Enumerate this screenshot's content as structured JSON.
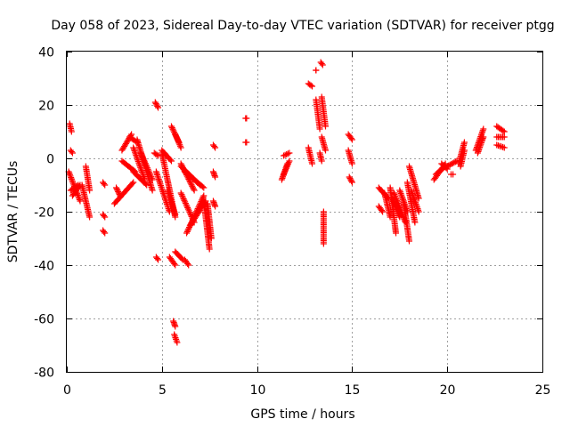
{
  "chart_data": {
    "type": "scatter",
    "title": "Day 058 of 2023, Sidereal Day-to-day VTEC variation (SDTVAR) for receiver ptgg",
    "xlabel": "GPS time / hours",
    "ylabel": "SDTVAR / TECUs",
    "xlim": [
      0,
      25
    ],
    "ylim": [
      -80,
      40
    ],
    "xticks": [
      0,
      5,
      10,
      15,
      20,
      25
    ],
    "yticks": [
      -80,
      -60,
      -40,
      -20,
      0,
      20,
      40
    ],
    "xtick_labels": [
      "0",
      "5",
      "10",
      "15",
      "20",
      "25"
    ],
    "ytick_labels": [
      "-80",
      "-60",
      "-40",
      "-20",
      "0",
      "20",
      "40"
    ],
    "grid": true,
    "marker": "+",
    "color": "#ff0000",
    "segments": [
      {
        "x0": 0.15,
        "x1": 0.25,
        "y0": 13,
        "y1": 10
      },
      {
        "x0": 0.2,
        "x1": 0.3,
        "y0": 3,
        "y1": 2
      },
      {
        "x0": 0.1,
        "x1": 0.7,
        "y0": -5,
        "y1": -16
      },
      {
        "x0": 0.2,
        "x1": 0.6,
        "y0": -12,
        "y1": -10
      },
      {
        "x0": 0.3,
        "x1": 0.7,
        "y0": -14,
        "y1": -10
      },
      {
        "x0": 0.8,
        "x1": 1.2,
        "y0": -10,
        "y1": -22
      },
      {
        "x0": 1.0,
        "x1": 1.2,
        "y0": -3,
        "y1": -12
      },
      {
        "x0": 1.9,
        "x1": 2.0,
        "y0": -9,
        "y1": -10
      },
      {
        "x0": 1.9,
        "x1": 2.0,
        "y0": -21,
        "y1": -22
      },
      {
        "x0": 1.9,
        "x1": 2.0,
        "y0": -27,
        "y1": -28
      },
      {
        "x0": 2.5,
        "x1": 3.5,
        "y0": -17,
        "y1": -9
      },
      {
        "x0": 2.6,
        "x1": 2.8,
        "y0": -11,
        "y1": -14
      },
      {
        "x0": 2.9,
        "x1": 3.4,
        "y0": 3,
        "y1": 9
      },
      {
        "x0": 3.3,
        "x1": 3.7,
        "y0": 8,
        "y1": 6
      },
      {
        "x0": 2.9,
        "x1": 3.6,
        "y0": -1,
        "y1": -5
      },
      {
        "x0": 3.5,
        "x1": 4.1,
        "y0": 4,
        "y1": -8
      },
      {
        "x0": 3.7,
        "x1": 4.5,
        "y0": 7,
        "y1": -12
      },
      {
        "x0": 3.9,
        "x1": 4.5,
        "y0": 2,
        "y1": -8
      },
      {
        "x0": 3.5,
        "x1": 4.2,
        "y0": -5,
        "y1": -10
      },
      {
        "x0": 4.65,
        "x1": 4.8,
        "y0": 21,
        "y1": 19
      },
      {
        "x0": 4.6,
        "x1": 4.8,
        "y0": 2,
        "y1": 1
      },
      {
        "x0": 4.7,
        "x1": 5.4,
        "y0": -5,
        "y1": -20
      },
      {
        "x0": 5.0,
        "x1": 5.7,
        "y0": 2,
        "y1": -22
      },
      {
        "x0": 5.3,
        "x1": 5.7,
        "y0": -12,
        "y1": -21
      },
      {
        "x0": 4.7,
        "x1": 4.8,
        "y0": -37,
        "y1": -38
      },
      {
        "x0": 5.0,
        "x1": 5.5,
        "y0": 3,
        "y1": -1
      },
      {
        "x0": 5.5,
        "x1": 5.9,
        "y0": 12,
        "y1": 6
      },
      {
        "x0": 5.7,
        "x1": 6.0,
        "y0": 9,
        "y1": 4
      },
      {
        "x0": 5.4,
        "x1": 5.7,
        "y0": -37,
        "y1": -40
      },
      {
        "x0": 5.7,
        "x1": 6.1,
        "y0": -35,
        "y1": -38
      },
      {
        "x0": 6.2,
        "x1": 6.4,
        "y0": -38,
        "y1": -40
      },
      {
        "x0": 5.6,
        "x1": 5.7,
        "y0": -61,
        "y1": -63
      },
      {
        "x0": 5.65,
        "x1": 5.8,
        "y0": -66,
        "y1": -69
      },
      {
        "x0": 6.0,
        "x1": 6.7,
        "y0": -2,
        "y1": -12
      },
      {
        "x0": 6.0,
        "x1": 7.0,
        "y0": -3,
        "y1": -10
      },
      {
        "x0": 6.2,
        "x1": 7.2,
        "y0": -5,
        "y1": -11
      },
      {
        "x0": 6.0,
        "x1": 6.7,
        "y0": -13,
        "y1": -24
      },
      {
        "x0": 6.3,
        "x1": 7.2,
        "y0": -28,
        "y1": -14
      },
      {
        "x0": 6.5,
        "x1": 7.3,
        "y0": -25,
        "y1": -16
      },
      {
        "x0": 7.2,
        "x1": 7.5,
        "y0": -16,
        "y1": -34
      },
      {
        "x0": 7.4,
        "x1": 7.6,
        "y0": -17,
        "y1": -30
      },
      {
        "x0": 7.7,
        "x1": 7.8,
        "y0": 5,
        "y1": 4
      },
      {
        "x0": 7.7,
        "x1": 7.8,
        "y0": -5,
        "y1": -7
      },
      {
        "x0": 7.7,
        "x1": 7.8,
        "y0": -16,
        "y1": -18
      },
      {
        "x0": 9.4,
        "x1": 9.45,
        "y0": 15,
        "y1": 15
      },
      {
        "x0": 9.4,
        "x1": 9.45,
        "y0": 6,
        "y1": 6
      },
      {
        "x0": 11.3,
        "x1": 11.6,
        "y0": -8,
        "y1": -2
      },
      {
        "x0": 11.4,
        "x1": 11.7,
        "y0": -6,
        "y1": -1
      },
      {
        "x0": 11.4,
        "x1": 11.7,
        "y0": 1,
        "y1": 2
      },
      {
        "x0": 12.7,
        "x1": 12.9,
        "y0": 28,
        "y1": 27
      },
      {
        "x0": 12.7,
        "x1": 12.9,
        "y0": 4,
        "y1": -2
      },
      {
        "x0": 13.1,
        "x1": 13.1,
        "y0": 33,
        "y1": 33
      },
      {
        "x0": 13.1,
        "x1": 13.3,
        "y0": 22,
        "y1": 11
      },
      {
        "x0": 13.35,
        "x1": 13.45,
        "y0": 36,
        "y1": 35
      },
      {
        "x0": 13.4,
        "x1": 13.6,
        "y0": 23,
        "y1": 12
      },
      {
        "x0": 13.4,
        "x1": 13.6,
        "y0": 8,
        "y1": 3
      },
      {
        "x0": 13.3,
        "x1": 13.4,
        "y0": 2,
        "y1": -1
      },
      {
        "x0": 13.5,
        "x1": 13.5,
        "y0": -20,
        "y1": -32
      },
      {
        "x0": 14.8,
        "x1": 15.0,
        "y0": 9,
        "y1": 7
      },
      {
        "x0": 14.8,
        "x1": 15.0,
        "y0": 3,
        "y1": -2
      },
      {
        "x0": 14.85,
        "x1": 15.0,
        "y0": -7,
        "y1": -9
      },
      {
        "x0": 16.4,
        "x1": 16.9,
        "y0": -11,
        "y1": -15
      },
      {
        "x0": 16.4,
        "x1": 16.6,
        "y0": -18,
        "y1": -20
      },
      {
        "x0": 16.7,
        "x1": 17.0,
        "y0": -13,
        "y1": -22
      },
      {
        "x0": 17.0,
        "x1": 17.3,
        "y0": -11,
        "y1": -28
      },
      {
        "x0": 17.1,
        "x1": 17.5,
        "y0": -15,
        "y1": -22
      },
      {
        "x0": 17.2,
        "x1": 17.8,
        "y0": -13,
        "y1": -24
      },
      {
        "x0": 17.5,
        "x1": 17.9,
        "y0": -12,
        "y1": -20
      },
      {
        "x0": 17.7,
        "x1": 18.0,
        "y0": -16,
        "y1": -31
      },
      {
        "x0": 17.9,
        "x1": 18.3,
        "y0": -9,
        "y1": -24
      },
      {
        "x0": 18.0,
        "x1": 18.5,
        "y0": -3,
        "y1": -15
      },
      {
        "x0": 18.1,
        "x1": 18.5,
        "y0": -12,
        "y1": -20
      },
      {
        "x0": 19.3,
        "x1": 19.9,
        "y0": -8,
        "y1": -2
      },
      {
        "x0": 19.4,
        "x1": 19.9,
        "y0": -6,
        "y1": -3
      },
      {
        "x0": 19.7,
        "x1": 20.0,
        "y0": -2,
        "y1": -4
      },
      {
        "x0": 20.0,
        "x1": 20.5,
        "y0": -3,
        "y1": -1
      },
      {
        "x0": 20.2,
        "x1": 20.3,
        "y0": -6,
        "y1": -6
      },
      {
        "x0": 20.6,
        "x1": 20.9,
        "y0": -2,
        "y1": 6
      },
      {
        "x0": 20.7,
        "x1": 20.9,
        "y0": -3,
        "y1": 3
      },
      {
        "x0": 21.5,
        "x1": 21.9,
        "y0": 3,
        "y1": 11
      },
      {
        "x0": 21.6,
        "x1": 21.9,
        "y0": 2,
        "y1": 8
      },
      {
        "x0": 22.6,
        "x1": 23.0,
        "y0": 12,
        "y1": 10
      },
      {
        "x0": 22.6,
        "x1": 23.0,
        "y0": 8,
        "y1": 8
      },
      {
        "x0": 22.6,
        "x1": 23.0,
        "y0": 5,
        "y1": 4
      }
    ]
  }
}
